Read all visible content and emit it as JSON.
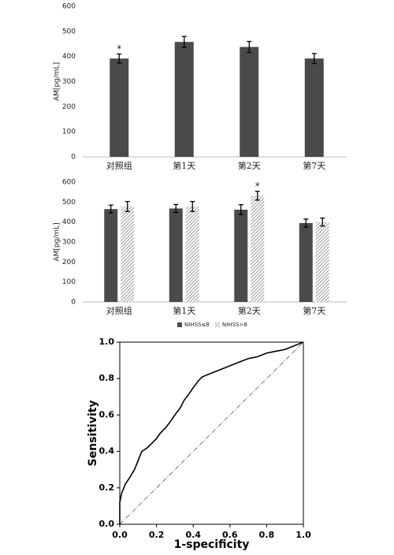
{
  "chart_data": [
    {
      "type": "bar",
      "ylabel": "AM[pg/mL]",
      "categories": [
        "对照组",
        "第1天",
        "第2天",
        "第7天"
      ],
      "values": [
        392,
        458,
        438,
        392
      ],
      "errors": [
        18,
        22,
        22,
        20
      ],
      "significance": [
        "*",
        null,
        null,
        null
      ],
      "color": "#4a4a4a",
      "ylim": [
        0,
        600
      ],
      "yticks": [
        0,
        100,
        200,
        300,
        400,
        500,
        600
      ]
    },
    {
      "type": "bar",
      "ylabel": "AM[pg/mL]",
      "categories": [
        "对照组",
        "第1天",
        "第2天",
        "第7天"
      ],
      "series": [
        {
          "name": "NIHSS≤8",
          "color": "#4a4a4a",
          "values": [
            465,
            468,
            462,
            395
          ],
          "errors": [
            20,
            20,
            25,
            20
          ],
          "significance": [
            null,
            null,
            null,
            null
          ]
        },
        {
          "name": "NIHSS>8",
          "color": "#9a9a9a",
          "hatch": true,
          "values": [
            478,
            478,
            532,
            400
          ],
          "errors": [
            25,
            25,
            22,
            20
          ],
          "significance": [
            null,
            null,
            "*",
            null
          ]
        }
      ],
      "legend": "bottom",
      "ylim": [
        0,
        600
      ],
      "yticks": [
        0,
        100,
        200,
        300,
        400,
        500,
        600
      ]
    },
    {
      "type": "line",
      "xlabel": "1-specificity",
      "ylabel": "Sensitivity",
      "x": [
        0,
        0,
        0.01,
        0.03,
        0.05,
        0.08,
        0.1,
        0.12,
        0.15,
        0.18,
        0.2,
        0.22,
        0.25,
        0.28,
        0.3,
        0.33,
        0.35,
        0.38,
        0.4,
        0.43,
        0.45,
        0.5,
        0.55,
        0.6,
        0.65,
        0.7,
        0.75,
        0.8,
        0.85,
        0.9,
        0.95,
        1.0
      ],
      "y": [
        0,
        0.12,
        0.17,
        0.22,
        0.25,
        0.3,
        0.35,
        0.4,
        0.42,
        0.45,
        0.47,
        0.5,
        0.53,
        0.57,
        0.6,
        0.64,
        0.68,
        0.72,
        0.75,
        0.79,
        0.81,
        0.83,
        0.85,
        0.87,
        0.89,
        0.91,
        0.92,
        0.94,
        0.95,
        0.96,
        0.98,
        1.0
      ],
      "color": "#000000",
      "diagonal": true,
      "xlim": [
        0,
        1
      ],
      "ylim": [
        0,
        1
      ],
      "xticks": [
        {
          "value": 0,
          "label": "0.0"
        },
        0.2,
        0.4,
        0.6,
        0.8,
        {
          "value": 1,
          "label": "1.0"
        }
      ],
      "yticks": [
        {
          "value": 0,
          "label": "0.0"
        },
        0.2,
        0.4,
        0.6,
        0.8,
        {
          "value": 1,
          "label": "1.0"
        }
      ]
    }
  ]
}
